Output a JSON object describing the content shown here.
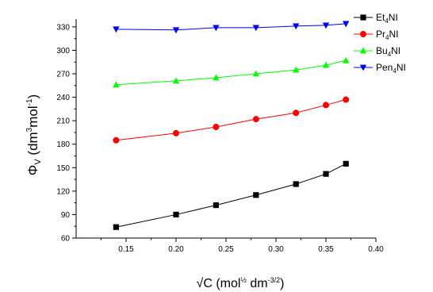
{
  "chart_data": {
    "type": "line",
    "title": "",
    "xlabel": {
      "base": "√C (mol",
      "half": "½",
      "mid": " dm",
      "exp": "-3/2",
      "close": ")"
    },
    "ylabel": {
      "phi": "Φ",
      "sub": "V",
      "open": " (dm",
      "exp3": "3",
      "mid": "mol",
      "expm1": "-1",
      "close": ")"
    },
    "xlim": [
      0.1,
      0.4
    ],
    "ylim": [
      60,
      340
    ],
    "xticks": [
      "0.15",
      "0.20",
      "0.25",
      "0.30",
      "0.35",
      "0.40"
    ],
    "yticks": [
      "60",
      "90",
      "120",
      "150",
      "180",
      "210",
      "240",
      "270",
      "300",
      "330"
    ],
    "grid": false,
    "legend_position": "top-right",
    "x": [
      0.14,
      0.2,
      0.24,
      0.28,
      0.32,
      0.35,
      0.37
    ],
    "series": [
      {
        "name": {
          "pre": "Et",
          "sub": "4",
          "post": "NI"
        },
        "color": "#000000",
        "marker": "square",
        "values": [
          74,
          90,
          102,
          115,
          129,
          142,
          155
        ]
      },
      {
        "name": {
          "pre": "Pr",
          "sub": "4",
          "post": "NI"
        },
        "color": "#ff0000",
        "marker": "circle",
        "values": [
          185,
          194,
          202,
          212,
          220,
          230,
          237
        ]
      },
      {
        "name": {
          "pre": "Bu",
          "sub": "4",
          "post": "NI"
        },
        "color": "#00ff00",
        "marker": "triangle-up",
        "values": [
          256,
          261,
          265,
          270,
          275,
          281,
          287
        ]
      },
      {
        "name": {
          "pre": "Pen",
          "sub": "4",
          "post": "NI"
        },
        "color": "#0000ff",
        "marker": "triangle-down",
        "values": [
          327,
          326,
          329,
          329,
          331,
          332,
          334
        ]
      }
    ]
  }
}
